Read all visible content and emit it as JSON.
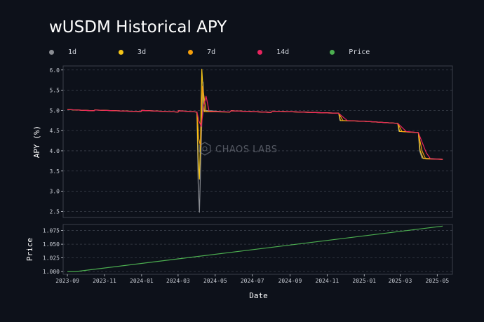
{
  "chart_data": {
    "type": "line",
    "title": "wUSDM Historical APY",
    "watermark": "CHAOS LABS",
    "legend": [
      {
        "name": "1d",
        "color": "#8a8d93"
      },
      {
        "name": "3d",
        "color": "#f5c518"
      },
      {
        "name": "7d",
        "color": "#f59f0b"
      },
      {
        "name": "14d",
        "color": "#e8245e"
      },
      {
        "name": "Price",
        "color": "#4caf50"
      }
    ],
    "xlabel": "Date",
    "x_ticks": [
      "2023-09",
      "2023-11",
      "2024-01",
      "2024-03",
      "2024-05",
      "2024-07",
      "2024-09",
      "2024-11",
      "2025-01",
      "2025-03",
      "2025-05"
    ],
    "x_range": [
      "2023-08-25",
      "2025-05-26"
    ],
    "panels": [
      {
        "ylabel": "APY (%)",
        "ylim": [
          2.35,
          6.1
        ],
        "y_ticks": [
          "2.5",
          "3.0",
          "3.5",
          "4.0",
          "4.5",
          "5.0",
          "5.5",
          "6.0"
        ],
        "grid": true,
        "series": [
          {
            "name": "1d",
            "color": "#8a8d93",
            "points": [
              [
                "2023-09-01",
                5.02
              ],
              [
                "2023-10-15",
                4.99
              ],
              [
                "2023-10-16",
                5.01
              ],
              [
                "2023-12-31",
                4.97
              ],
              [
                "2024-01-01",
                5.0
              ],
              [
                "2024-03-01",
                4.96
              ],
              [
                "2024-03-02",
                4.99
              ],
              [
                "2024-04-01",
                4.96
              ],
              [
                "2024-04-03",
                3.2
              ],
              [
                "2024-04-05",
                2.48
              ],
              [
                "2024-04-07",
                3.6
              ],
              [
                "2024-04-09",
                4.7
              ],
              [
                "2024-04-11",
                5.7
              ],
              [
                "2024-04-13",
                5.0
              ],
              [
                "2024-05-25",
                4.96
              ],
              [
                "2024-05-27",
                4.99
              ],
              [
                "2024-08-01",
                4.95
              ],
              [
                "2024-08-03",
                4.98
              ],
              [
                "2024-11-20",
                4.93
              ],
              [
                "2024-11-22",
                4.75
              ],
              [
                "2025-01-01",
                4.73
              ],
              [
                "2025-02-25",
                4.68
              ],
              [
                "2025-02-27",
                4.48
              ],
              [
                "2025-03-31",
                4.45
              ],
              [
                "2025-04-02",
                4.0
              ],
              [
                "2025-04-06",
                3.82
              ],
              [
                "2025-05-10",
                3.79
              ]
            ]
          },
          {
            "name": "3d",
            "color": "#f5c518",
            "points": [
              [
                "2023-09-01",
                5.02
              ],
              [
                "2023-10-15",
                4.99
              ],
              [
                "2023-10-16",
                5.01
              ],
              [
                "2023-12-31",
                4.97
              ],
              [
                "2024-01-01",
                5.0
              ],
              [
                "2024-03-01",
                4.96
              ],
              [
                "2024-03-02",
                4.99
              ],
              [
                "2024-04-01",
                4.96
              ],
              [
                "2024-04-03",
                3.8
              ],
              [
                "2024-04-05",
                3.3
              ],
              [
                "2024-04-07",
                4.4
              ],
              [
                "2024-04-09",
                6.02
              ],
              [
                "2024-04-11",
                5.5
              ],
              [
                "2024-04-13",
                4.97
              ],
              [
                "2024-05-25",
                4.96
              ],
              [
                "2024-05-27",
                4.99
              ],
              [
                "2024-08-01",
                4.95
              ],
              [
                "2024-08-03",
                4.98
              ],
              [
                "2024-11-20",
                4.93
              ],
              [
                "2024-11-23",
                4.75
              ],
              [
                "2025-01-01",
                4.73
              ],
              [
                "2025-02-25",
                4.68
              ],
              [
                "2025-02-28",
                4.48
              ],
              [
                "2025-03-31",
                4.45
              ],
              [
                "2025-04-03",
                4.0
              ],
              [
                "2025-04-08",
                3.81
              ],
              [
                "2025-05-10",
                3.79
              ]
            ]
          },
          {
            "name": "7d",
            "color": "#f59f0b",
            "points": [
              [
                "2023-09-01",
                5.02
              ],
              [
                "2023-10-15",
                4.99
              ],
              [
                "2023-10-16",
                5.01
              ],
              [
                "2023-12-31",
                4.97
              ],
              [
                "2024-01-01",
                5.0
              ],
              [
                "2024-03-01",
                4.96
              ],
              [
                "2024-03-02",
                4.99
              ],
              [
                "2024-04-01",
                4.96
              ],
              [
                "2024-04-04",
                4.3
              ],
              [
                "2024-04-07",
                4.1
              ],
              [
                "2024-04-10",
                5.6
              ],
              [
                "2024-04-13",
                5.3
              ],
              [
                "2024-04-16",
                4.97
              ],
              [
                "2024-05-25",
                4.96
              ],
              [
                "2024-05-27",
                4.99
              ],
              [
                "2024-08-01",
                4.95
              ],
              [
                "2024-08-03",
                4.98
              ],
              [
                "2024-11-20",
                4.93
              ],
              [
                "2024-11-27",
                4.75
              ],
              [
                "2025-01-01",
                4.73
              ],
              [
                "2025-02-25",
                4.68
              ],
              [
                "2025-03-04",
                4.48
              ],
              [
                "2025-03-31",
                4.45
              ],
              [
                "2025-04-06",
                4.0
              ],
              [
                "2025-04-12",
                3.8
              ],
              [
                "2025-05-10",
                3.79
              ]
            ]
          },
          {
            "name": "14d",
            "color": "#e8245e",
            "points": [
              [
                "2023-09-01",
                5.02
              ],
              [
                "2023-10-15",
                4.99
              ],
              [
                "2023-10-16",
                5.01
              ],
              [
                "2023-12-31",
                4.97
              ],
              [
                "2024-01-01",
                5.0
              ],
              [
                "2024-03-01",
                4.96
              ],
              [
                "2024-03-02",
                4.99
              ],
              [
                "2024-04-01",
                4.96
              ],
              [
                "2024-04-04",
                4.75
              ],
              [
                "2024-04-08",
                4.6
              ],
              [
                "2024-04-12",
                5.1
              ],
              [
                "2024-04-16",
                5.35
              ],
              [
                "2024-04-21",
                4.98
              ],
              [
                "2024-05-25",
                4.96
              ],
              [
                "2024-05-27",
                4.99
              ],
              [
                "2024-08-01",
                4.95
              ],
              [
                "2024-08-03",
                4.98
              ],
              [
                "2024-11-20",
                4.93
              ],
              [
                "2024-12-04",
                4.75
              ],
              [
                "2025-01-01",
                4.73
              ],
              [
                "2025-02-25",
                4.68
              ],
              [
                "2025-03-11",
                4.48
              ],
              [
                "2025-03-31",
                4.45
              ],
              [
                "2025-04-13",
                3.95
              ],
              [
                "2025-04-20",
                3.8
              ],
              [
                "2025-05-10",
                3.79
              ]
            ]
          }
        ]
      },
      {
        "ylabel": "Price",
        "ylim": [
          0.995,
          1.086
        ],
        "y_ticks": [
          "1.000",
          "1.025",
          "1.050",
          "1.075"
        ],
        "grid": true,
        "series": [
          {
            "name": "Price",
            "color": "#4caf50",
            "points": [
              [
                "2023-09-01",
                1.0
              ],
              [
                "2023-09-15",
                1.0
              ],
              [
                "2025-05-10",
                1.083
              ]
            ]
          }
        ]
      }
    ]
  }
}
